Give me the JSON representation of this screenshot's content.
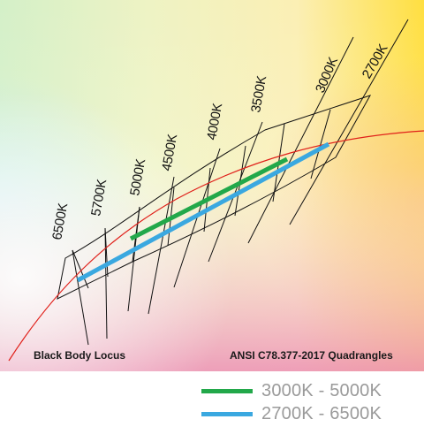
{
  "colors": {
    "green_range": "#22a84a",
    "blue_range": "#3aa8e0",
    "locus": "#e0201a",
    "lines": "#111111",
    "legend_text": "#9a9a9a"
  },
  "cct_labels": [
    "6500K",
    "5700K",
    "5000K",
    "4500K",
    "4000K",
    "3500K",
    "3000K",
    "2700K"
  ],
  "captions": {
    "locus": "Black Body Locus",
    "quadrangles": "ANSI C78.377-2017 Quadrangles"
  },
  "legend": [
    {
      "label": "3000K - 5000K",
      "color": "#22a84a"
    },
    {
      "label": "2700K - 6500K",
      "color": "#3aa8e0"
    }
  ]
}
